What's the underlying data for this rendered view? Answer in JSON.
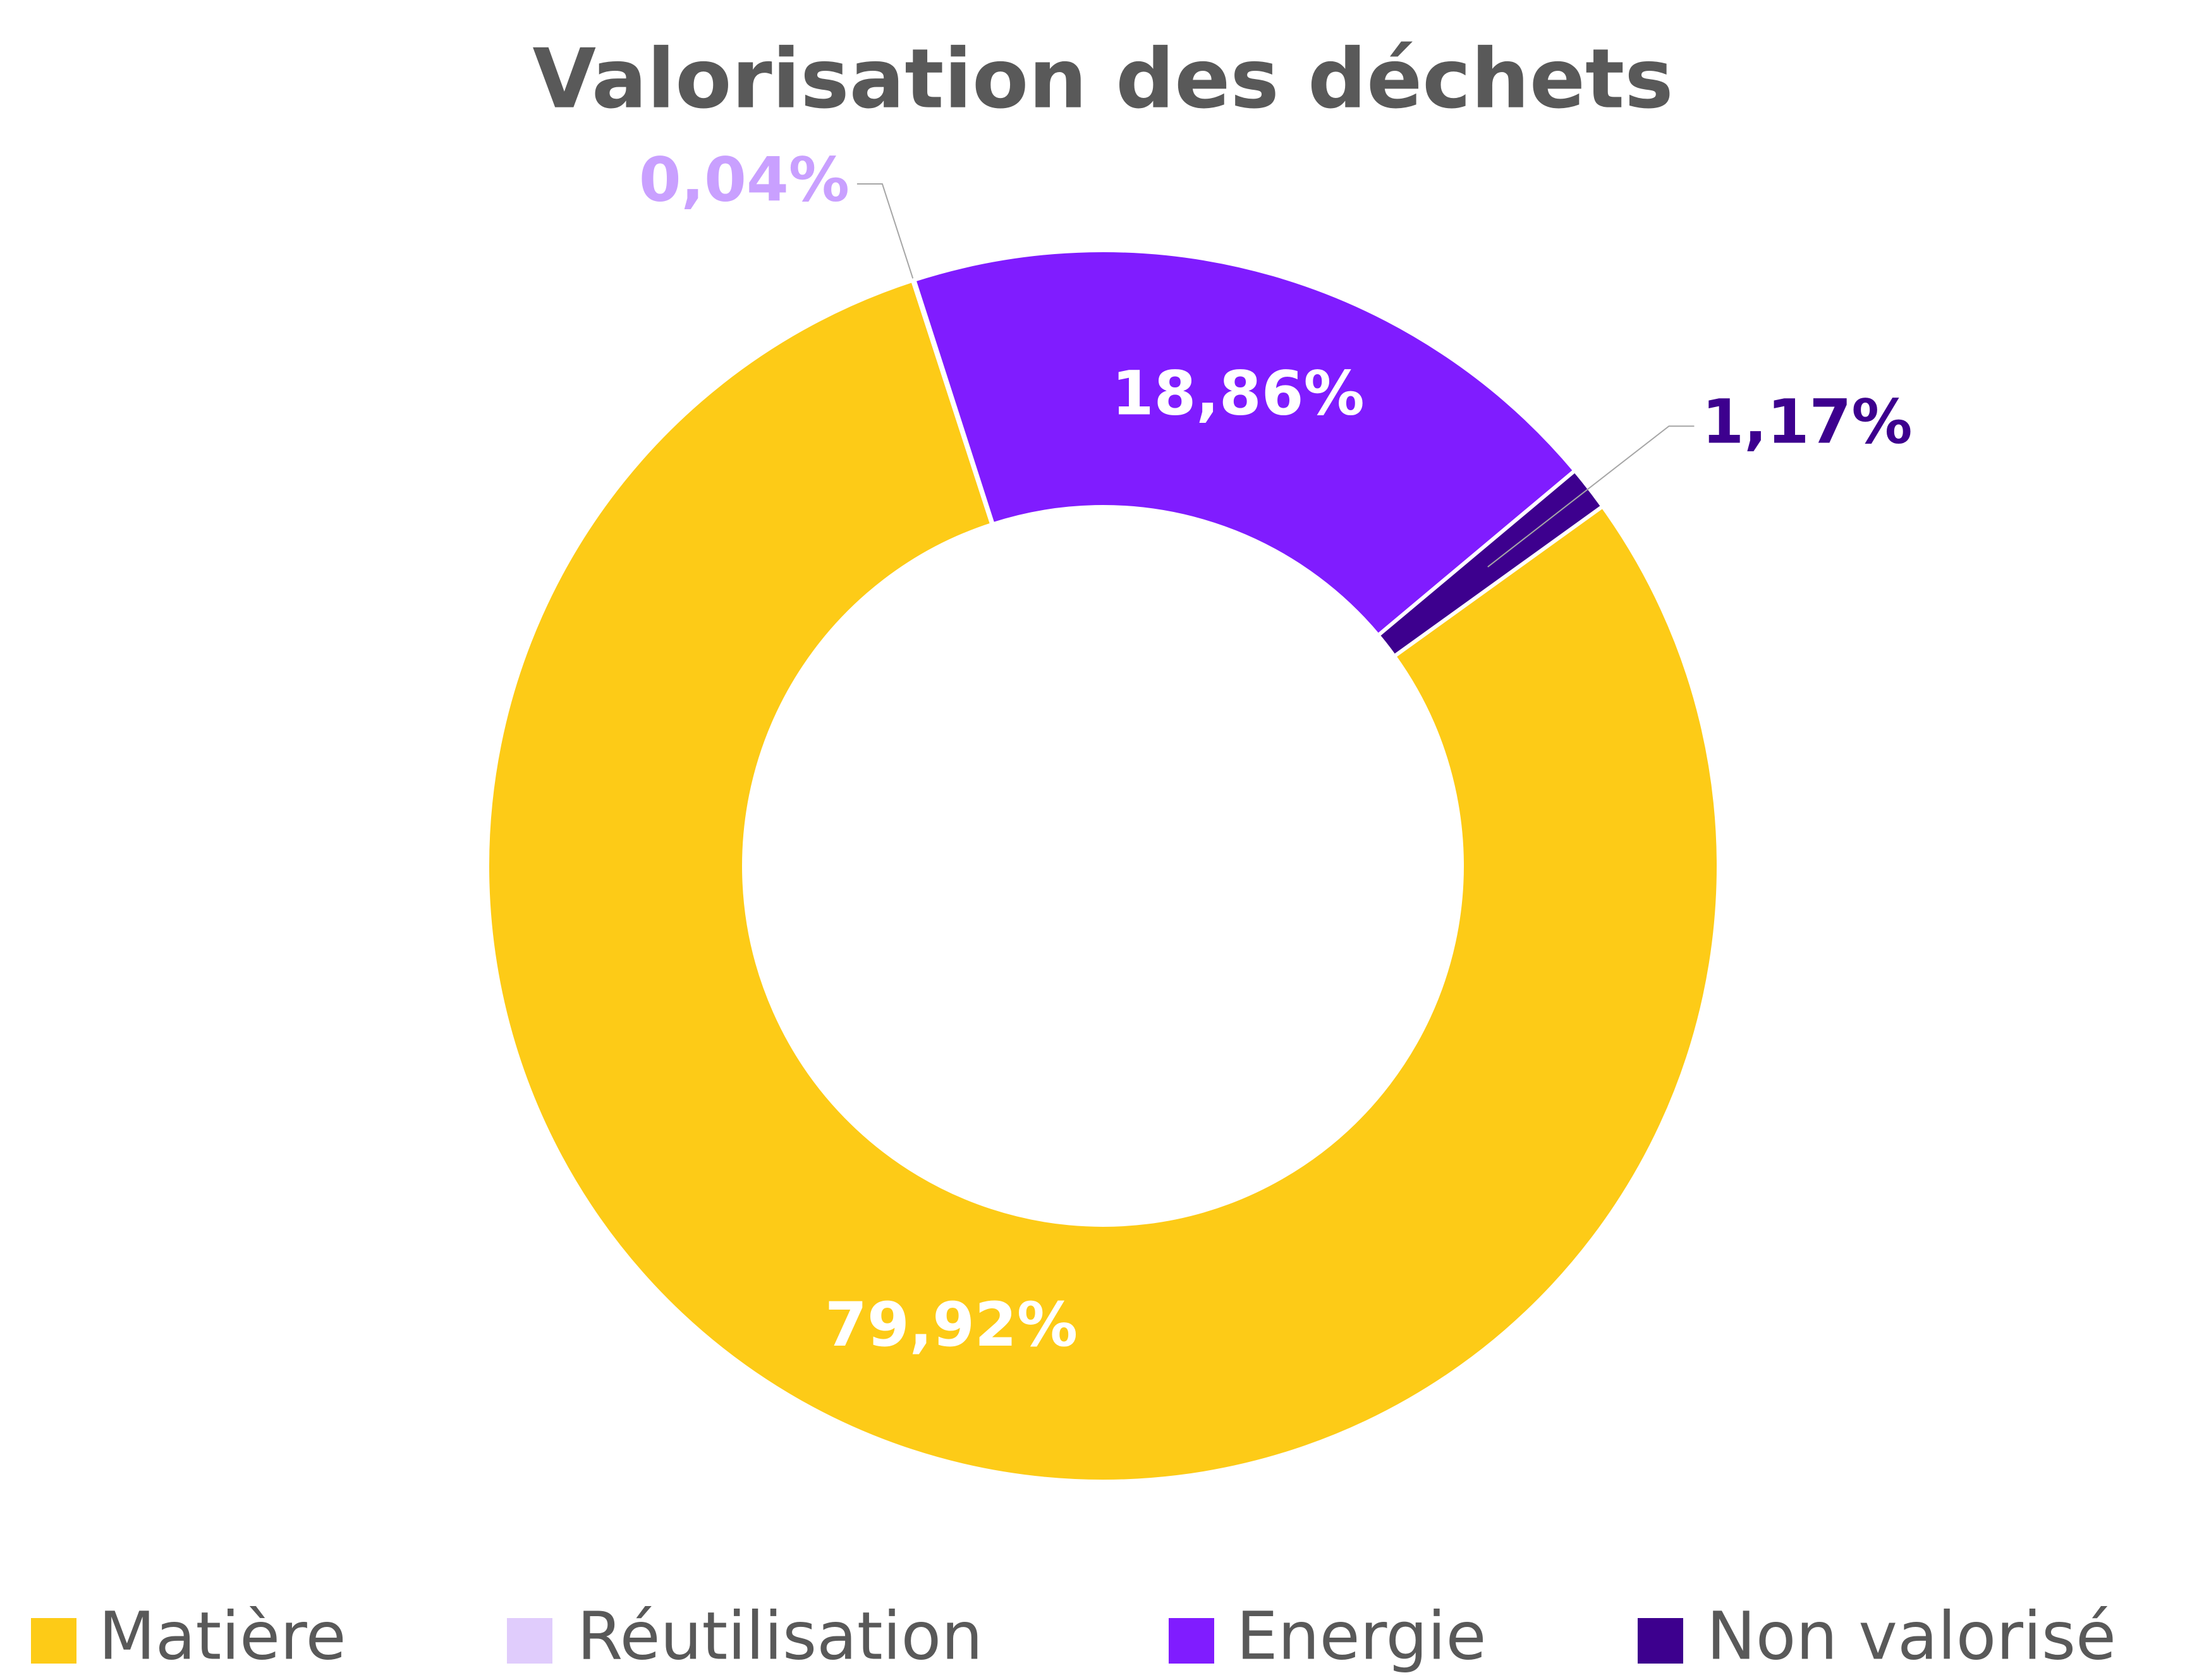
{
  "chart_data": {
    "type": "donut",
    "title": "Valorisation des déchets",
    "categories": [
      "Matière",
      "Réutilisation",
      "Energie",
      "Non valorisé"
    ],
    "values": [
      79.92,
      0.04,
      18.86,
      1.17
    ],
    "value_labels": [
      "79,92%",
      "0,04%",
      "18,86%",
      "1,17%"
    ],
    "colors": [
      "#fdcb17",
      "#e0ccfc",
      "#801cff",
      "#3d008e"
    ],
    "value_label_colors": [
      "#ffffff",
      "#c9a0ff",
      "#ffffff",
      "#3d008e"
    ],
    "legend": "bottom"
  }
}
